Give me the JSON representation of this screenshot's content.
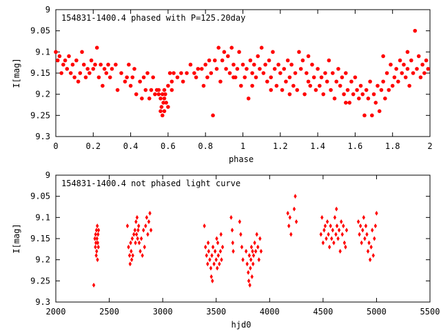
{
  "chart_data": [
    {
      "type": "scatter",
      "title": "154831-1400.4 phased with P=125.20day",
      "xlabel": "phase",
      "ylabel": "I[mag]",
      "xlim": [
        0,
        2
      ],
      "ylim": [
        9.3,
        9.0
      ],
      "y_inverted": true,
      "grid": false,
      "marker_color": "#ff0000",
      "marker": "filled-square-dot",
      "x_ticks": [
        "0",
        "0.2",
        "0.4",
        "0.6",
        "0.8",
        "1",
        "1.2",
        "1.4",
        "1.6",
        "1.8",
        "2"
      ],
      "y_ticks": [
        "9",
        "9.05",
        "9.1",
        "9.15",
        "9.2",
        "9.25",
        "9.3"
      ],
      "points": [
        [
          0.0,
          9.1
        ],
        [
          0.01,
          9.12
        ],
        [
          0.02,
          9.11
        ],
        [
          0.03,
          9.15
        ],
        [
          0.04,
          9.13
        ],
        [
          0.05,
          9.12
        ],
        [
          0.06,
          9.14
        ],
        [
          0.07,
          9.11
        ],
        [
          0.08,
          9.15
        ],
        [
          0.09,
          9.13
        ],
        [
          0.1,
          9.16
        ],
        [
          0.11,
          9.12
        ],
        [
          0.12,
          9.17
        ],
        [
          0.13,
          9.15
        ],
        [
          0.14,
          9.1
        ],
        [
          0.15,
          9.13
        ],
        [
          0.16,
          9.16
        ],
        [
          0.17,
          9.14
        ],
        [
          0.18,
          9.15
        ],
        [
          0.19,
          9.12
        ],
        [
          0.2,
          9.14
        ],
        [
          0.21,
          9.13
        ],
        [
          0.22,
          9.09
        ],
        [
          0.23,
          9.16
        ],
        [
          0.24,
          9.13
        ],
        [
          0.25,
          9.18
        ],
        [
          0.26,
          9.14
        ],
        [
          0.27,
          9.15
        ],
        [
          0.28,
          9.13
        ],
        [
          0.29,
          9.16
        ],
        [
          0.3,
          9.14
        ],
        [
          0.32,
          9.13
        ],
        [
          0.33,
          9.19
        ],
        [
          0.35,
          9.15
        ],
        [
          0.37,
          9.17
        ],
        [
          0.38,
          9.16
        ],
        [
          0.39,
          9.13
        ],
        [
          0.4,
          9.18
        ],
        [
          0.41,
          9.16
        ],
        [
          0.42,
          9.14
        ],
        [
          0.43,
          9.2
        ],
        [
          0.45,
          9.17
        ],
        [
          0.46,
          9.21
        ],
        [
          0.47,
          9.16
        ],
        [
          0.48,
          9.19
        ],
        [
          0.49,
          9.15
        ],
        [
          0.5,
          9.21
        ],
        [
          0.51,
          9.19
        ],
        [
          0.52,
          9.16
        ],
        [
          0.53,
          9.2
        ],
        [
          0.54,
          9.19
        ],
        [
          0.55,
          9.19
        ],
        [
          0.56,
          9.21
        ],
        [
          0.565,
          9.23
        ],
        [
          0.57,
          9.25
        ],
        [
          0.575,
          9.22
        ],
        [
          0.58,
          9.24
        ],
        [
          0.585,
          9.2
        ],
        [
          0.59,
          9.22
        ],
        [
          0.6,
          9.18
        ],
        [
          0.61,
          9.15
        ],
        [
          0.62,
          9.17
        ],
        [
          0.63,
          9.15
        ],
        [
          0.65,
          9.16
        ],
        [
          0.67,
          9.15
        ],
        [
          0.68,
          9.17
        ],
        [
          0.7,
          9.15
        ],
        [
          0.72,
          9.13
        ],
        [
          0.74,
          9.15
        ],
        [
          0.75,
          9.16
        ],
        [
          0.76,
          9.14
        ],
        [
          0.78,
          9.14
        ],
        [
          0.79,
          9.18
        ],
        [
          0.8,
          9.13
        ],
        [
          0.81,
          9.16
        ],
        [
          0.82,
          9.12
        ],
        [
          0.83,
          9.15
        ],
        [
          0.84,
          9.25
        ],
        [
          0.85,
          9.12
        ],
        [
          0.86,
          9.14
        ],
        [
          0.87,
          9.09
        ],
        [
          0.88,
          9.17
        ],
        [
          0.89,
          9.12
        ],
        [
          0.9,
          9.1
        ],
        [
          0.91,
          9.14
        ],
        [
          0.92,
          9.11
        ],
        [
          0.93,
          9.15
        ],
        [
          0.94,
          9.09
        ],
        [
          0.95,
          9.13
        ],
        [
          0.96,
          9.16
        ],
        [
          0.97,
          9.14
        ],
        [
          0.98,
          9.1
        ],
        [
          0.99,
          9.18
        ],
        [
          1.0,
          9.13
        ],
        [
          1.01,
          9.16
        ],
        [
          1.02,
          9.14
        ],
        [
          1.03,
          9.21
        ],
        [
          1.04,
          9.12
        ],
        [
          1.05,
          9.15
        ],
        [
          1.06,
          9.13
        ],
        [
          1.07,
          9.16
        ],
        [
          1.08,
          9.11
        ],
        [
          1.09,
          9.14
        ],
        [
          1.1,
          9.09
        ],
        [
          1.11,
          9.15
        ],
        [
          1.12,
          9.13
        ],
        [
          1.13,
          9.17
        ],
        [
          1.14,
          9.12
        ],
        [
          1.15,
          9.16
        ],
        [
          1.16,
          9.1
        ],
        [
          1.17,
          9.14
        ],
        [
          1.18,
          9.18
        ],
        [
          1.19,
          9.13
        ],
        [
          1.2,
          9.15
        ],
        [
          1.21,
          9.19
        ],
        [
          1.22,
          9.14
        ],
        [
          1.23,
          9.17
        ],
        [
          1.24,
          9.12
        ],
        [
          1.25,
          9.16
        ],
        [
          1.26,
          9.13
        ],
        [
          1.27,
          9.18
        ],
        [
          1.28,
          9.15
        ],
        [
          1.29,
          9.19
        ],
        [
          1.3,
          9.1
        ],
        [
          1.31,
          9.14
        ],
        [
          1.32,
          9.12
        ],
        [
          1.33,
          9.2
        ],
        [
          1.34,
          9.15
        ],
        [
          1.35,
          9.11
        ],
        [
          1.36,
          9.18
        ],
        [
          1.37,
          9.13
        ],
        [
          1.38,
          9.16
        ],
        [
          1.39,
          9.19
        ],
        [
          1.4,
          9.14
        ],
        [
          1.41,
          9.18
        ],
        [
          1.42,
          9.16
        ],
        [
          1.43,
          9.2
        ],
        [
          1.44,
          9.15
        ],
        [
          1.45,
          9.17
        ],
        [
          1.46,
          9.12
        ],
        [
          1.47,
          9.19
        ],
        [
          1.48,
          9.15
        ],
        [
          1.49,
          9.21
        ],
        [
          1.5,
          9.17
        ],
        [
          1.51,
          9.14
        ],
        [
          1.52,
          9.18
        ],
        [
          1.53,
          9.16
        ],
        [
          1.54,
          9.2
        ],
        [
          1.55,
          9.15
        ],
        [
          1.56,
          9.19
        ],
        [
          1.57,
          9.22
        ],
        [
          1.58,
          9.17
        ],
        [
          1.59,
          9.2
        ],
        [
          1.6,
          9.16
        ],
        [
          1.61,
          9.19
        ],
        [
          1.62,
          9.21
        ],
        [
          1.63,
          9.18
        ],
        [
          1.64,
          9.2
        ],
        [
          1.65,
          9.25
        ],
        [
          1.66,
          9.19
        ],
        [
          1.67,
          9.21
        ],
        [
          1.68,
          9.17
        ],
        [
          1.69,
          9.25
        ],
        [
          1.7,
          9.2
        ],
        [
          1.71,
          9.22
        ],
        [
          1.72,
          9.18
        ],
        [
          1.73,
          9.24
        ],
        [
          1.74,
          9.19
        ],
        [
          1.75,
          9.17
        ],
        [
          1.76,
          9.21
        ],
        [
          1.77,
          9.15
        ],
        [
          1.78,
          9.19
        ],
        [
          1.79,
          9.13
        ],
        [
          1.8,
          9.18
        ],
        [
          1.81,
          9.16
        ],
        [
          1.82,
          9.14
        ],
        [
          1.83,
          9.17
        ],
        [
          1.84,
          9.12
        ],
        [
          1.85,
          9.15
        ],
        [
          1.86,
          9.13
        ],
        [
          1.87,
          9.16
        ],
        [
          1.88,
          9.14
        ],
        [
          1.89,
          9.18
        ],
        [
          1.9,
          9.12
        ],
        [
          1.91,
          9.15
        ],
        [
          1.92,
          9.05
        ],
        [
          1.93,
          9.14
        ],
        [
          1.94,
          9.11
        ],
        [
          1.95,
          9.16
        ],
        [
          1.96,
          9.13
        ],
        [
          1.97,
          9.15
        ],
        [
          1.98,
          9.12
        ],
        [
          1.99,
          9.14
        ],
        [
          1.55,
          9.22
        ],
        [
          1.25,
          9.2
        ],
        [
          1.05,
          9.18
        ],
        [
          0.95,
          9.16
        ],
        [
          1.15,
          9.19
        ],
        [
          1.35,
          9.17
        ],
        [
          0.55,
          9.2
        ],
        [
          0.58,
          9.19
        ],
        [
          0.58,
          9.21
        ],
        [
          0.57,
          9.2
        ],
        [
          0.56,
          9.24
        ],
        [
          0.6,
          9.23
        ],
        [
          0.62,
          9.19
        ],
        [
          1.75,
          9.11
        ],
        [
          1.88,
          9.1
        ]
      ]
    },
    {
      "type": "scatter",
      "title": "154831-1400.4 not phased light curve",
      "xlabel": "hjd0",
      "ylabel": "I[mag]",
      "xlim": [
        2000,
        5500
      ],
      "ylim": [
        9.3,
        9.0
      ],
      "y_inverted": true,
      "grid": false,
      "marker_color": "#ff0000",
      "marker": "filled-diamond",
      "x_ticks": [
        "2000",
        "2500",
        "3000",
        "3500",
        "4000",
        "4500",
        "5000",
        "5500"
      ],
      "y_ticks": [
        "9",
        "9.05",
        "9.1",
        "9.15",
        "9.2",
        "9.25",
        "9.3"
      ],
      "points": [
        [
          2355,
          9.26
        ],
        [
          2365,
          9.15
        ],
        [
          2370,
          9.17
        ],
        [
          2372,
          9.14
        ],
        [
          2375,
          9.16
        ],
        [
          2378,
          9.19
        ],
        [
          2380,
          9.13
        ],
        [
          2382,
          9.18
        ],
        [
          2385,
          9.15
        ],
        [
          2388,
          9.12
        ],
        [
          2390,
          9.2
        ],
        [
          2392,
          9.16
        ],
        [
          2395,
          9.14
        ],
        [
          2398,
          9.17
        ],
        [
          2400,
          9.13
        ],
        [
          2670,
          9.12
        ],
        [
          2680,
          9.17
        ],
        [
          2690,
          9.19
        ],
        [
          2695,
          9.21
        ],
        [
          2700,
          9.16
        ],
        [
          2705,
          9.18
        ],
        [
          2710,
          9.2
        ],
        [
          2715,
          9.15
        ],
        [
          2720,
          9.19
        ],
        [
          2730,
          9.14
        ],
        [
          2740,
          9.13
        ],
        [
          2745,
          9.16
        ],
        [
          2750,
          9.11
        ],
        [
          2755,
          9.14
        ],
        [
          2760,
          9.1
        ],
        [
          2765,
          9.15
        ],
        [
          2770,
          9.13
        ],
        [
          2775,
          9.12
        ],
        [
          2780,
          9.16
        ],
        [
          2790,
          9.18
        ],
        [
          2800,
          9.15
        ],
        [
          2810,
          9.19
        ],
        [
          2820,
          9.13
        ],
        [
          2830,
          9.17
        ],
        [
          2840,
          9.12
        ],
        [
          2850,
          9.1
        ],
        [
          2860,
          9.14
        ],
        [
          2870,
          9.11
        ],
        [
          2880,
          9.09
        ],
        [
          2890,
          9.13
        ],
        [
          3390,
          9.12
        ],
        [
          3400,
          9.17
        ],
        [
          3410,
          9.19
        ],
        [
          3420,
          9.21
        ],
        [
          3425,
          9.16
        ],
        [
          3430,
          9.18
        ],
        [
          3440,
          9.2
        ],
        [
          3450,
          9.22
        ],
        [
          3455,
          9.24
        ],
        [
          3460,
          9.19
        ],
        [
          3465,
          9.25
        ],
        [
          3470,
          9.17
        ],
        [
          3480,
          9.21
        ],
        [
          3490,
          9.18
        ],
        [
          3500,
          9.2
        ],
        [
          3505,
          9.15
        ],
        [
          3510,
          9.22
        ],
        [
          3515,
          9.16
        ],
        [
          3520,
          9.19
        ],
        [
          3530,
          9.21
        ],
        [
          3540,
          9.18
        ],
        [
          3545,
          9.14
        ],
        [
          3550,
          9.2
        ],
        [
          3560,
          9.17
        ],
        [
          3640,
          9.1
        ],
        [
          3650,
          9.13
        ],
        [
          3655,
          9.16
        ],
        [
          3660,
          9.18
        ],
        [
          3720,
          9.11
        ],
        [
          3730,
          9.14
        ],
        [
          3740,
          9.17
        ],
        [
          3750,
          9.2
        ],
        [
          3780,
          9.18
        ],
        [
          3790,
          9.21
        ],
        [
          3800,
          9.23
        ],
        [
          3805,
          9.25
        ],
        [
          3810,
          9.19
        ],
        [
          3815,
          9.26
        ],
        [
          3820,
          9.22
        ],
        [
          3825,
          9.2
        ],
        [
          3830,
          9.17
        ],
        [
          3835,
          9.24
        ],
        [
          3840,
          9.18
        ],
        [
          3845,
          9.21
        ],
        [
          3850,
          9.19
        ],
        [
          3860,
          9.16
        ],
        [
          3870,
          9.18
        ],
        [
          3880,
          9.14
        ],
        [
          3890,
          9.17
        ],
        [
          3900,
          9.2
        ],
        [
          3910,
          9.15
        ],
        [
          3920,
          9.18
        ],
        [
          4170,
          9.09
        ],
        [
          4180,
          9.12
        ],
        [
          4190,
          9.1
        ],
        [
          4200,
          9.14
        ],
        [
          4230,
          9.08
        ],
        [
          4240,
          9.05
        ],
        [
          4250,
          9.11
        ],
        [
          4480,
          9.14
        ],
        [
          4490,
          9.1
        ],
        [
          4500,
          9.16
        ],
        [
          4510,
          9.13
        ],
        [
          4520,
          9.12
        ],
        [
          4530,
          9.15
        ],
        [
          4540,
          9.11
        ],
        [
          4550,
          9.14
        ],
        [
          4560,
          9.17
        ],
        [
          4570,
          9.12
        ],
        [
          4580,
          9.15
        ],
        [
          4590,
          9.13
        ],
        [
          4600,
          9.16
        ],
        [
          4610,
          9.1
        ],
        [
          4620,
          9.14
        ],
        [
          4625,
          9.08
        ],
        [
          4630,
          9.12
        ],
        [
          4640,
          9.15
        ],
        [
          4650,
          9.13
        ],
        [
          4660,
          9.18
        ],
        [
          4670,
          9.11
        ],
        [
          4680,
          9.14
        ],
        [
          4690,
          9.12
        ],
        [
          4700,
          9.16
        ],
        [
          4710,
          9.17
        ],
        [
          4720,
          9.13
        ],
        [
          4830,
          9.11
        ],
        [
          4840,
          9.14
        ],
        [
          4850,
          9.12
        ],
        [
          4860,
          9.16
        ],
        [
          4870,
          9.13
        ],
        [
          4880,
          9.1
        ],
        [
          4890,
          9.15
        ],
        [
          4900,
          9.12
        ],
        [
          4910,
          9.14
        ],
        [
          4920,
          9.18
        ],
        [
          4930,
          9.16
        ],
        [
          4940,
          9.2
        ],
        [
          4950,
          9.17
        ],
        [
          4960,
          9.13
        ],
        [
          4970,
          9.19
        ],
        [
          4980,
          9.15
        ],
        [
          4990,
          9.12
        ],
        [
          5000,
          9.09
        ]
      ]
    }
  ]
}
